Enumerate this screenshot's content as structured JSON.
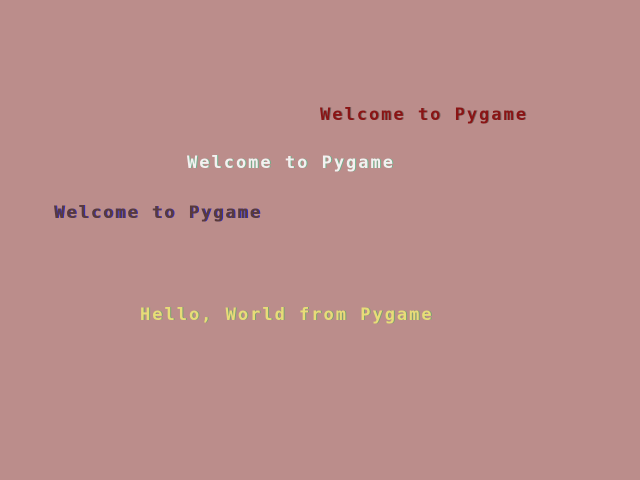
{
  "background_color": "#bb8d8b",
  "lines": [
    {
      "text": "Welcome to Pygame",
      "color": "#8a1414"
    },
    {
      "text": "Welcome to Pygame",
      "color": "#f4f0f0"
    },
    {
      "text": "Welcome to Pygame",
      "color": "#5a3a3a"
    },
    {
      "text": "Hello, World from Pygame",
      "color": "#e8dc78"
    }
  ]
}
